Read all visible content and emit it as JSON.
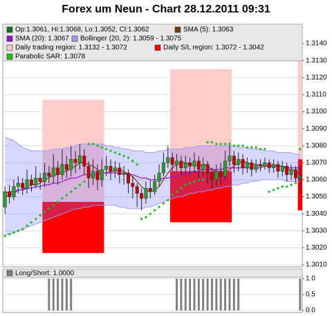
{
  "chart_data": [
    {
      "type": "candlestick",
      "title": "Forex um Neun - Chart 28.12.2011 09:31",
      "candle_legend": {
        "name": "Op:1.3061, Hi:1.3068, Lo:1.3052, Cl:1.3062",
        "color": "#1f6f1f"
      },
      "up_color": "#2e9e2e",
      "down_color": "#cc0000",
      "open": [
        1.3044,
        1.3053,
        1.305,
        1.3056,
        1.3058,
        1.3055,
        1.306,
        1.3057,
        1.3061,
        1.3059,
        1.3064,
        1.3062,
        1.3067,
        1.3063,
        1.3069,
        1.3066,
        1.3072,
        1.307,
        1.3074,
        1.3068,
        1.3061,
        1.3065,
        1.306,
        1.3066,
        1.3068,
        1.3065,
        1.3067,
        1.3063,
        1.3064,
        1.3058,
        1.3056,
        1.3052,
        1.3049,
        1.3055,
        1.3053,
        1.3059,
        1.3064,
        1.307,
        1.3073,
        1.3069,
        1.3071,
        1.3067,
        1.307,
        1.3068,
        1.3071,
        1.3066,
        1.3069,
        1.3064,
        1.306,
        1.3065,
        1.3062,
        1.3071,
        1.3074,
        1.3069,
        1.3072,
        1.3067,
        1.307,
        1.3066,
        1.3069,
        1.3068,
        1.307,
        1.3067,
        1.3069,
        1.3065,
        1.3068,
        1.3063,
        1.3066,
        1.3061
      ],
      "high": [
        1.3056,
        1.3057,
        1.306,
        1.3062,
        1.3061,
        1.3066,
        1.3063,
        1.3068,
        1.3064,
        1.307,
        1.3068,
        1.3075,
        1.3071,
        1.3078,
        1.3074,
        1.308,
        1.3077,
        1.3081,
        1.3078,
        1.3071,
        1.3072,
        1.3069,
        1.3072,
        1.3074,
        1.3072,
        1.3071,
        1.307,
        1.3068,
        1.3066,
        1.3062,
        1.3058,
        1.3055,
        1.3059,
        1.306,
        1.3063,
        1.3069,
        1.3076,
        1.308,
        1.3076,
        1.3075,
        1.3074,
        1.3074,
        1.3073,
        1.3076,
        1.3074,
        1.3073,
        1.3071,
        1.3067,
        1.3069,
        1.307,
        1.3077,
        1.3082,
        1.3077,
        1.3076,
        1.3075,
        1.3073,
        1.3072,
        1.3072,
        1.3072,
        1.3073,
        1.3072,
        1.3072,
        1.3071,
        1.3071,
        1.307,
        1.3069,
        1.3068,
        1.3068
      ],
      "low": [
        1.304,
        1.3046,
        1.3048,
        1.3052,
        1.3051,
        1.3052,
        1.3053,
        1.3055,
        1.3054,
        1.3056,
        1.3058,
        1.3058,
        1.3057,
        1.306,
        1.3061,
        1.3062,
        1.3064,
        1.3066,
        1.3063,
        1.3055,
        1.3057,
        1.3054,
        1.3056,
        1.3062,
        1.306,
        1.3061,
        1.3058,
        1.3057,
        1.3052,
        1.3049,
        1.3044,
        1.3042,
        1.3046,
        1.3049,
        1.3051,
        1.3056,
        1.3062,
        1.3067,
        1.3065,
        1.3065,
        1.3063,
        1.3064,
        1.3063,
        1.3064,
        1.3061,
        1.3062,
        1.3058,
        1.3055,
        1.3056,
        1.3057,
        1.306,
        1.3068,
        1.3064,
        1.3065,
        1.3063,
        1.3064,
        1.3062,
        1.3064,
        1.3065,
        1.3066,
        1.3064,
        1.3064,
        1.3061,
        1.3062,
        1.3059,
        1.306,
        1.3058,
        1.3052
      ],
      "close": [
        1.3053,
        1.305,
        1.3056,
        1.3058,
        1.3055,
        1.306,
        1.3057,
        1.3061,
        1.3059,
        1.3064,
        1.3062,
        1.3067,
        1.3063,
        1.3069,
        1.3066,
        1.3072,
        1.307,
        1.3074,
        1.3068,
        1.3061,
        1.3065,
        1.306,
        1.3066,
        1.3068,
        1.3065,
        1.3067,
        1.3063,
        1.3064,
        1.3058,
        1.3056,
        1.3052,
        1.3049,
        1.3055,
        1.3053,
        1.3059,
        1.3064,
        1.307,
        1.3073,
        1.3069,
        1.3071,
        1.3067,
        1.307,
        1.3068,
        1.3071,
        1.3066,
        1.3069,
        1.3064,
        1.306,
        1.3065,
        1.3062,
        1.3071,
        1.3074,
        1.3069,
        1.3072,
        1.3067,
        1.307,
        1.3066,
        1.3069,
        1.3068,
        1.307,
        1.3067,
        1.3069,
        1.3065,
        1.3068,
        1.3063,
        1.3066,
        1.3061,
        1.3062
      ],
      "series": [
        {
          "name": "SMA (5): 1.3063",
          "color": "#7a3d10",
          "values": [
            1.305,
            1.3051,
            1.3052,
            1.3054,
            1.3054,
            1.3056,
            1.3057,
            1.3057,
            1.3058,
            1.306,
            1.3061,
            1.3063,
            1.3063,
            1.3065,
            1.3065,
            1.3067,
            1.3068,
            1.307,
            1.307,
            1.3069,
            1.3068,
            1.3066,
            1.3064,
            1.3064,
            1.3065,
            1.3065,
            1.3066,
            1.3065,
            1.3063,
            1.3062,
            1.3059,
            1.3056,
            1.3054,
            1.3053,
            1.3054,
            1.3056,
            1.306,
            1.3064,
            1.3067,
            1.3069,
            1.307,
            1.307,
            1.3069,
            1.3069,
            1.3068,
            1.3069,
            1.3068,
            1.3066,
            1.3065,
            1.3064,
            1.3064,
            1.3066,
            1.3068,
            1.307,
            1.3071,
            1.307,
            1.3069,
            1.3069,
            1.3068,
            1.3069,
            1.3068,
            1.3069,
            1.3068,
            1.3068,
            1.3066,
            1.3066,
            1.3065,
            1.3063
          ]
        },
        {
          "name": "SMA (20): 1.3067",
          "color": "#9a10d8",
          "values": [
            1.3052,
            1.3053,
            1.3053,
            1.3054,
            1.3054,
            1.3055,
            1.3055,
            1.3056,
            1.3056,
            1.3057,
            1.3057,
            1.3058,
            1.3058,
            1.3059,
            1.306,
            1.3061,
            1.3061,
            1.3062,
            1.3063,
            1.3063,
            1.3063,
            1.3063,
            1.3064,
            1.3064,
            1.3064,
            1.3064,
            1.3064,
            1.3064,
            1.3063,
            1.3063,
            1.3062,
            1.3061,
            1.3061,
            1.306,
            1.306,
            1.306,
            1.3061,
            1.3061,
            1.3062,
            1.3062,
            1.3063,
            1.3063,
            1.3064,
            1.3065,
            1.3065,
            1.3066,
            1.3066,
            1.3066,
            1.3066,
            1.3066,
            1.3067,
            1.3067,
            1.3067,
            1.3067,
            1.3067,
            1.3067,
            1.3067,
            1.3067,
            1.3067,
            1.3068,
            1.3068,
            1.3068,
            1.3068,
            1.3068,
            1.3067,
            1.3067,
            1.3067,
            1.3067
          ]
        }
      ],
      "bollinger": {
        "name": "Bollinger (20, 2): 1.3059 - 1.3075",
        "color": "#9c9cf0",
        "fill": "rgba(110,110,255,0.28)",
        "upper": [
          1.3085,
          1.3084,
          1.3083,
          1.3081,
          1.3079,
          1.3078,
          1.3077,
          1.3077,
          1.3077,
          1.3077,
          1.3077,
          1.3078,
          1.3078,
          1.3078,
          1.3079,
          1.3079,
          1.308,
          1.3081,
          1.3081,
          1.3081,
          1.3081,
          1.3081,
          1.3081,
          1.308,
          1.308,
          1.3079,
          1.3079,
          1.3078,
          1.3078,
          1.3077,
          1.3077,
          1.3077,
          1.3076,
          1.3076,
          1.3076,
          1.3077,
          1.3077,
          1.3078,
          1.3078,
          1.3078,
          1.3078,
          1.3079,
          1.3079,
          1.3079,
          1.308,
          1.308,
          1.308,
          1.308,
          1.308,
          1.308,
          1.308,
          1.308,
          1.308,
          1.3079,
          1.3079,
          1.3079,
          1.3078,
          1.3078,
          1.3078,
          1.3077,
          1.3077,
          1.3077,
          1.3076,
          1.3076,
          1.3076,
          1.3076,
          1.3075,
          1.3075
        ],
        "lower": [
          1.3028,
          1.3028,
          1.3029,
          1.303,
          1.3031,
          1.3032,
          1.3033,
          1.3034,
          1.3035,
          1.3036,
          1.3037,
          1.3038,
          1.3039,
          1.304,
          1.3041,
          1.3042,
          1.3043,
          1.3043,
          1.3044,
          1.3044,
          1.3045,
          1.3045,
          1.3045,
          1.3045,
          1.3045,
          1.3045,
          1.3044,
          1.3044,
          1.3043,
          1.3043,
          1.3043,
          1.3043,
          1.3044,
          1.3044,
          1.3045,
          1.3046,
          1.3047,
          1.3048,
          1.3049,
          1.305,
          1.305,
          1.3051,
          1.3052,
          1.3052,
          1.3053,
          1.3053,
          1.3054,
          1.3054,
          1.3055,
          1.3055,
          1.3056,
          1.3056,
          1.3057,
          1.3057,
          1.3058,
          1.3058,
          1.3059,
          1.3059,
          1.306,
          1.306,
          1.306,
          1.306,
          1.306,
          1.306,
          1.3059,
          1.3059,
          1.3059,
          1.3059
        ]
      },
      "regions": {
        "trading": {
          "name": "Daily trading region: 1.3132 - 1.3072",
          "color": "#ffcccc"
        },
        "sl": {
          "name": "Daily S/L region: 1.3072 - 1.3042",
          "color": "#ff0000"
        },
        "items": [
          {
            "x": [
              9,
              23
            ],
            "trading": [
              1.3107,
              1.3047
            ],
            "sl": [
              1.3047,
              1.3017
            ]
          },
          {
            "x": [
              38,
              52
            ],
            "trading": [
              1.3125,
              1.3065
            ],
            "sl": [
              1.3065,
              1.3035
            ]
          },
          {
            "x": [
              67,
              68
            ],
            "trading": [
              1.3132,
              1.3072
            ],
            "sl": [
              1.3072,
              1.3042
            ]
          }
        ]
      },
      "sar": {
        "name": "Parabolic SAR: 1.3078",
        "color": "#22bb22",
        "values": [
          1.3027,
          1.3028,
          1.3029,
          1.303,
          1.3031,
          1.3033,
          1.3035,
          1.3037,
          1.3039,
          1.3041,
          1.3043,
          1.3045,
          1.3047,
          1.3049,
          1.3051,
          1.3053,
          1.3055,
          1.3057,
          1.3059,
          1.3081,
          1.3081,
          1.308,
          1.3079,
          1.3078,
          1.3077,
          1.3076,
          1.3075,
          1.3074,
          1.3073,
          1.3071,
          1.3069,
          1.3037,
          1.3038,
          1.304,
          1.3042,
          1.3044,
          1.3046,
          1.3048,
          1.3051,
          1.3053,
          1.3055,
          1.3057,
          1.3058,
          1.3059,
          1.306,
          1.306,
          1.3082,
          1.3082,
          1.3081,
          1.3081,
          1.3081,
          1.3081,
          1.308,
          1.308,
          1.308,
          1.3079,
          1.3079,
          1.3079,
          1.3078,
          1.3078,
          1.3053,
          1.3054,
          1.3055,
          1.3056,
          1.3056,
          1.3057,
          1.3058,
          1.3078
        ]
      },
      "ylim": [
        1.30088,
        1.31514
      ],
      "yticks": [
        {
          "value": 1.301,
          "label": "1.3010"
        },
        {
          "value": 1.302,
          "label": "1.3020"
        },
        {
          "value": 1.303,
          "label": "1.3030"
        },
        {
          "value": 1.304,
          "label": "1.3040"
        },
        {
          "value": 1.305,
          "label": "1.3050"
        },
        {
          "value": 1.306,
          "label": "1.3060"
        },
        {
          "value": 1.307,
          "label": "1.3070"
        },
        {
          "value": 1.308,
          "label": "1.3080"
        },
        {
          "value": 1.309,
          "label": "1.3090"
        },
        {
          "value": 1.31,
          "label": "1.3100"
        },
        {
          "value": 1.311,
          "label": "1.3110"
        },
        {
          "value": 1.312,
          "label": "1.3120"
        },
        {
          "value": 1.313,
          "label": "1.3130"
        },
        {
          "value": 1.314,
          "label": "1.3140"
        }
      ],
      "grid": true
    },
    {
      "type": "bar",
      "legend": "Long/Short: 1.0000",
      "color": "#808080",
      "values": [
        0,
        0,
        0,
        0,
        0,
        0,
        0,
        0,
        0,
        0,
        1,
        1,
        1,
        1,
        1,
        1,
        0,
        0,
        0,
        0,
        0,
        0,
        0,
        0,
        0,
        0,
        0,
        0,
        0,
        0,
        0,
        0,
        0,
        0,
        0,
        0,
        0,
        0,
        0,
        1,
        1,
        1,
        1,
        1,
        1,
        1,
        1,
        1,
        1,
        1,
        1,
        1,
        1,
        1,
        0,
        0,
        0,
        0,
        0,
        0,
        0,
        0,
        0,
        0,
        0,
        0,
        0,
        1
      ],
      "ylim": [
        -0.065,
        1.304
      ],
      "yticks": [
        {
          "value": 0,
          "label": "0.0"
        },
        {
          "value": 0.5,
          "label": "0.5"
        },
        {
          "value": 1,
          "label": "1.0"
        }
      ],
      "grid": true
    }
  ]
}
